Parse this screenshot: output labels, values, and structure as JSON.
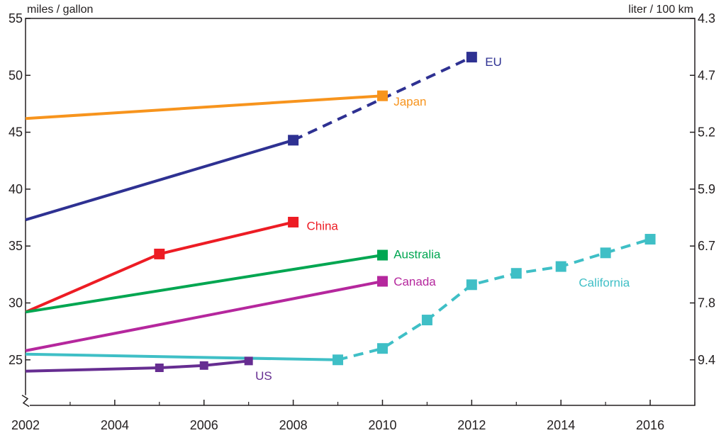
{
  "chart_data": {
    "type": "line",
    "y_label_left": "miles / gallon",
    "y_label_right": "liter / 100 km",
    "xlim": [
      2002,
      2017
    ],
    "ylim": [
      21,
      55
    ],
    "x_ticks": [
      2002,
      2004,
      2006,
      2008,
      2010,
      2012,
      2014,
      2016
    ],
    "x_ticks_minor": [
      2003,
      2005,
      2007,
      2009,
      2011,
      2013,
      2015,
      2017
    ],
    "y_ticks_left": [
      25,
      30,
      35,
      40,
      45,
      50,
      55
    ],
    "y_ticks_right": [
      {
        "label": "4.3",
        "mpg": 55
      },
      {
        "label": "4.7",
        "mpg": 50
      },
      {
        "label": "5.2",
        "mpg": 45
      },
      {
        "label": "5.9",
        "mpg": 40
      },
      {
        "label": "6.7",
        "mpg": 35
      },
      {
        "label": "7.8",
        "mpg": 30
      },
      {
        "label": "9.4",
        "mpg": 25
      }
    ],
    "axis_break": true,
    "series": [
      {
        "name": "EU",
        "color": "#2e3192",
        "label_pos": {
          "x": 2012.3,
          "y": 51.2
        },
        "solid": [
          [
            2002,
            37.3
          ],
          [
            2008,
            44.3
          ]
        ],
        "dashed": [
          [
            2008,
            44.3
          ],
          [
            2012,
            51.6
          ]
        ],
        "markers": [
          [
            2008,
            44.3
          ],
          [
            2012,
            51.6
          ]
        ],
        "marker_size": "large"
      },
      {
        "name": "Japan",
        "color": "#f7941d",
        "label_pos": {
          "x": 2010.25,
          "y": 47.7
        },
        "solid": [
          [
            2002,
            46.2
          ],
          [
            2010,
            48.2
          ]
        ],
        "dashed": [],
        "markers": [
          [
            2010,
            48.2
          ]
        ],
        "marker_size": "large"
      },
      {
        "name": "China",
        "color": "#ed1c24",
        "label_pos": {
          "x": 2008.3,
          "y": 36.8
        },
        "solid": [
          [
            2002,
            29.2
          ],
          [
            2005,
            34.3
          ],
          [
            2008,
            37.1
          ]
        ],
        "dashed": [],
        "markers": [
          [
            2005,
            34.3
          ],
          [
            2008,
            37.1
          ]
        ],
        "marker_size": "large"
      },
      {
        "name": "Australia",
        "color": "#00a651",
        "label_pos": {
          "x": 2010.25,
          "y": 34.3
        },
        "solid": [
          [
            2002,
            29.2
          ],
          [
            2010,
            34.2
          ]
        ],
        "dashed": [],
        "markers": [
          [
            2010,
            34.2
          ]
        ],
        "marker_size": "large"
      },
      {
        "name": "Canada",
        "color": "#b5279d",
        "label_pos": {
          "x": 2010.25,
          "y": 31.9
        },
        "solid": [
          [
            2002,
            25.8
          ],
          [
            2010,
            31.9
          ]
        ],
        "dashed": [],
        "markers": [
          [
            2010,
            31.9
          ]
        ],
        "marker_size": "large"
      },
      {
        "name": "California",
        "color": "#3fbfc6",
        "label_pos": {
          "x": 2014.4,
          "y": 31.8
        },
        "solid": [
          [
            2002,
            25.5
          ],
          [
            2009,
            25.0
          ]
        ],
        "dashed": [
          [
            2009,
            25.0
          ],
          [
            2010,
            26.0
          ],
          [
            2011,
            28.5
          ],
          [
            2012,
            31.6
          ],
          [
            2013,
            32.6
          ],
          [
            2014,
            33.2
          ],
          [
            2015,
            34.4
          ],
          [
            2016,
            35.6
          ]
        ],
        "markers": [
          [
            2009,
            25.0
          ],
          [
            2010,
            26.0
          ],
          [
            2011,
            28.5
          ],
          [
            2012,
            31.6
          ],
          [
            2013,
            32.6
          ],
          [
            2014,
            33.2
          ],
          [
            2015,
            34.4
          ],
          [
            2016,
            35.6
          ]
        ],
        "marker_size": "large"
      },
      {
        "name": "US",
        "color": "#662d91",
        "label_pos": {
          "x": 2007.15,
          "y": 23.6
        },
        "solid": [
          [
            2002,
            24.0
          ],
          [
            2005,
            24.3
          ],
          [
            2006,
            24.5
          ],
          [
            2007,
            24.9
          ]
        ],
        "dashed": [],
        "markers": [
          [
            2005,
            24.3
          ],
          [
            2006,
            24.5
          ],
          [
            2007,
            24.9
          ]
        ],
        "marker_size": "small"
      }
    ]
  }
}
